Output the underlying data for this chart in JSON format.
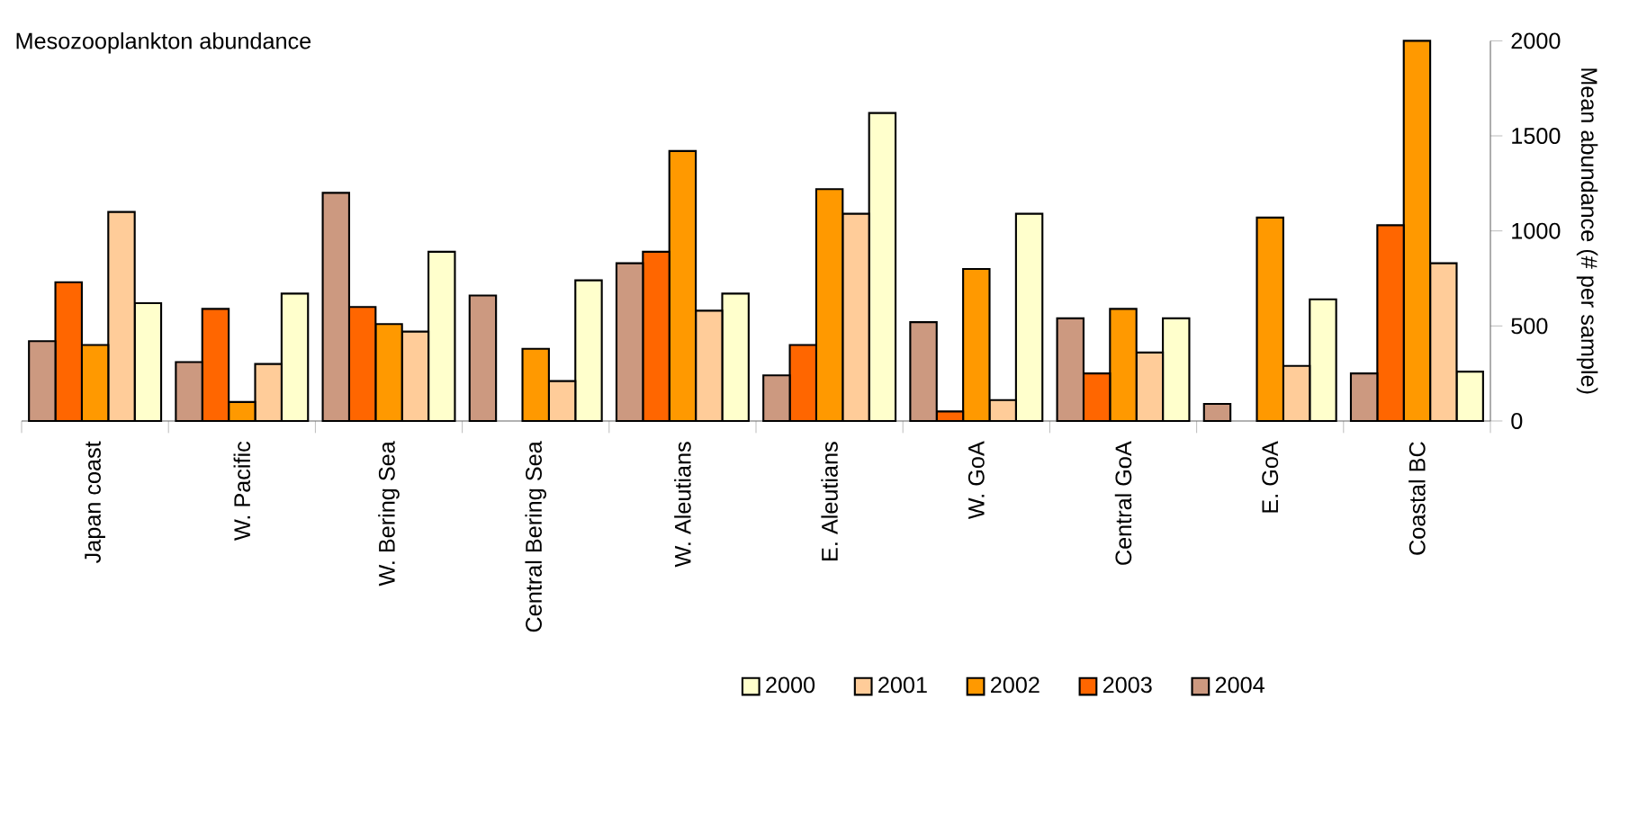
{
  "chart_data": {
    "type": "bar",
    "title": "Mesozooplankton abundance",
    "ylabel": "Mean abundance (# per sample)",
    "categories": [
      "Japan coast",
      "W. Pacific",
      "W. Bering Sea",
      "Central Bering Sea",
      "W. Aleutians",
      "E. Aleutians",
      "W. GoA",
      "Central GoA",
      "E. GoA",
      "Coastal BC"
    ],
    "series": [
      {
        "name": "2000",
        "color": "#ffffcc",
        "values": [
          620,
          670,
          890,
          740,
          670,
          1620,
          1090,
          540,
          640,
          260
        ]
      },
      {
        "name": "2001",
        "color": "#ffcc99",
        "values": [
          1100,
          300,
          470,
          210,
          580,
          1090,
          110,
          360,
          290,
          830
        ]
      },
      {
        "name": "2002",
        "color": "#ff9900",
        "values": [
          400,
          100,
          510,
          380,
          1420,
          1220,
          800,
          590,
          1070,
          2000
        ]
      },
      {
        "name": "2003",
        "color": "#ff6600",
        "values": [
          730,
          590,
          600,
          null,
          890,
          400,
          50,
          250,
          null,
          1030
        ]
      },
      {
        "name": "2004",
        "color": "#cc9980",
        "values": [
          420,
          310,
          1200,
          660,
          830,
          240,
          520,
          540,
          90,
          250
        ]
      }
    ],
    "ylim": [
      0,
      2000
    ],
    "yticks": [
      0,
      500,
      1000,
      1500,
      2000
    ],
    "legend": "bottom"
  }
}
